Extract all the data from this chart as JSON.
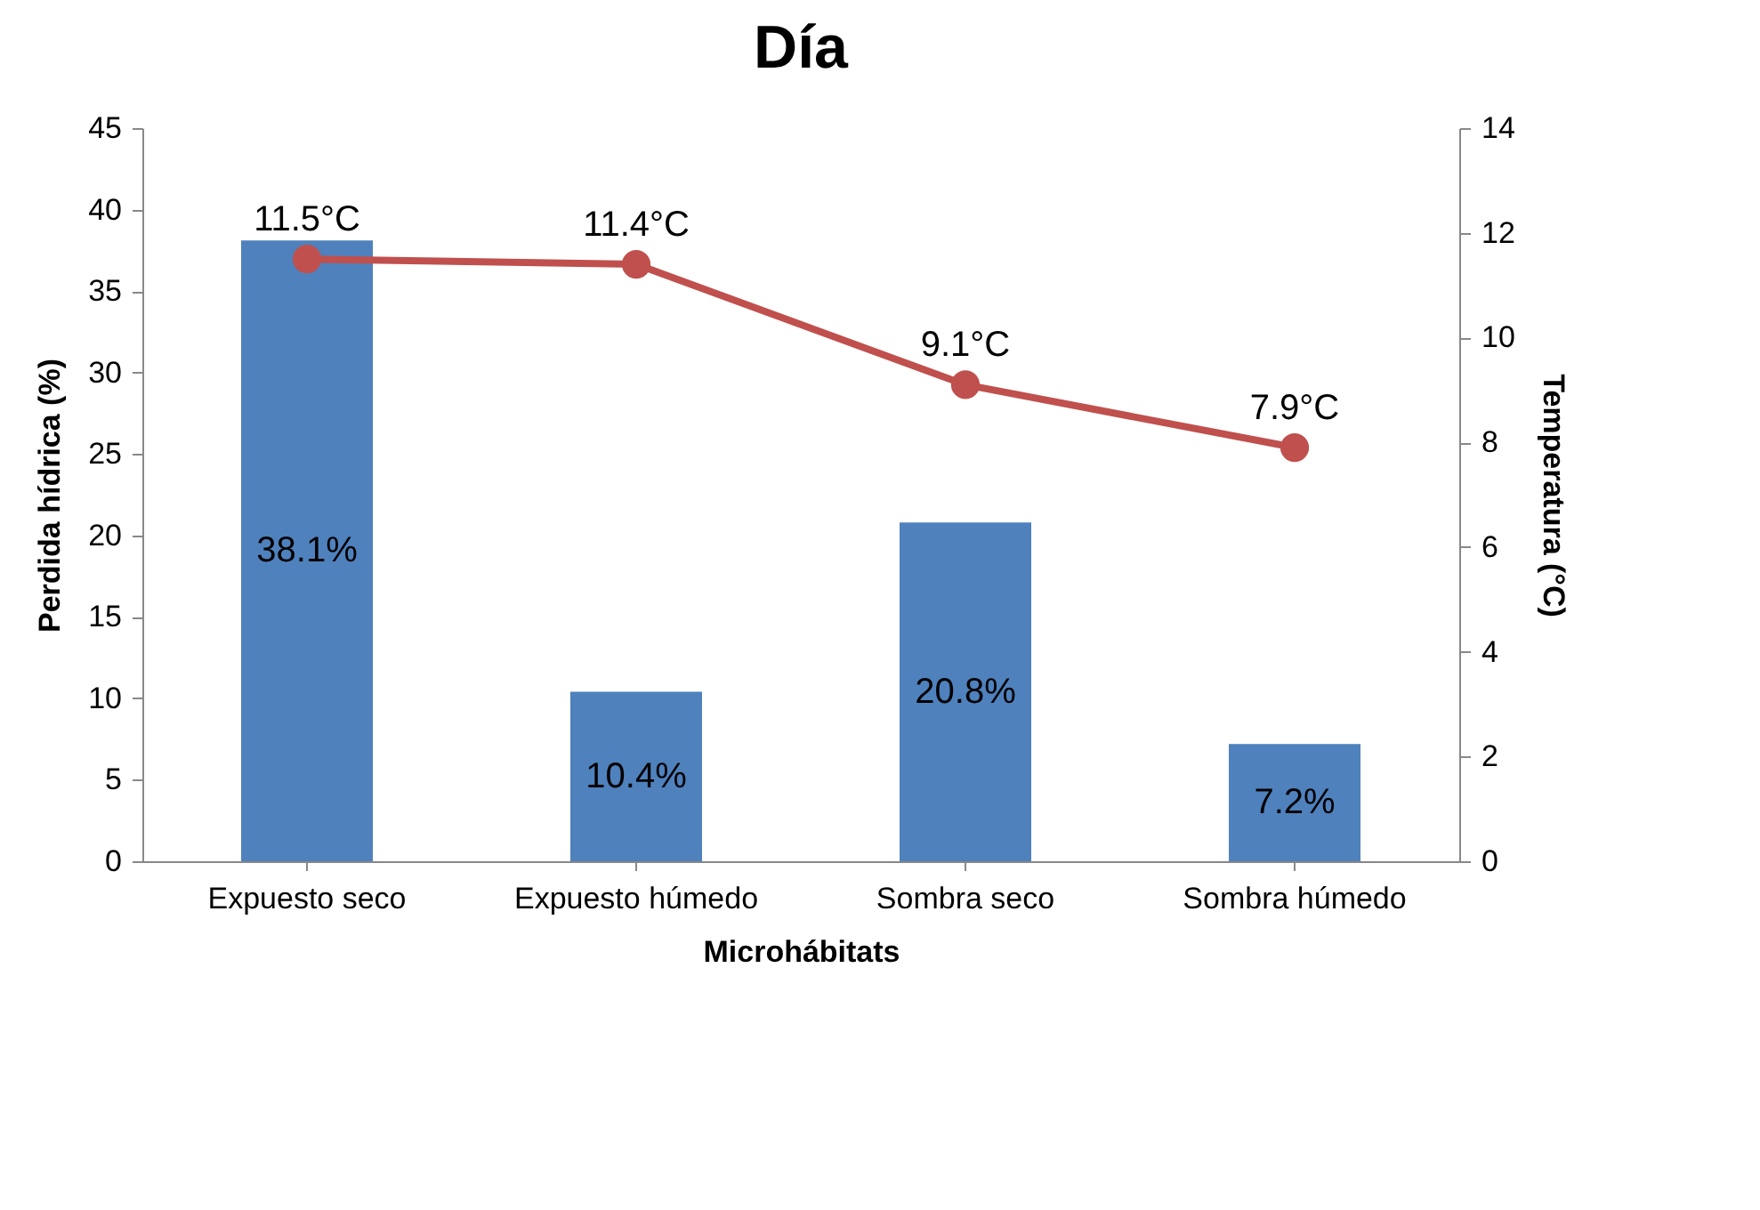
{
  "chart_data": {
    "type": "bar",
    "title": "Día",
    "xlabel": "Microhábitats",
    "ylabel": "Perdida hídrica (%)",
    "y2label": "Temperatura (°C)",
    "categories": [
      "Expuesto seco",
      "Expuesto húmedo",
      "Sombra seco",
      "Sombra húmedo"
    ],
    "series": [
      {
        "color": "#4f81bd",
        "values": [
          38.1,
          10.4,
          20.8,
          7.2
        ],
        "value_labels": [
          "38.1%",
          "10.4%",
          "20.8%",
          "7.2%"
        ]
      },
      {
        "type": "line",
        "axis": "y2",
        "color": "#c0504d",
        "marker": "circle",
        "values": [
          11.5,
          11.4,
          9.1,
          7.9
        ],
        "value_labels": [
          "11.5°C",
          "11.4°C",
          "9.1°C",
          "7.9°C"
        ]
      }
    ],
    "ylim": [
      0,
      45
    ],
    "yticks": [
      0,
      5,
      10,
      15,
      20,
      25,
      30,
      35,
      40,
      45
    ],
    "y2lim": [
      0,
      14
    ],
    "y2ticks": [
      0,
      2,
      4,
      6,
      8,
      10,
      12,
      14
    ],
    "grid": false
  }
}
